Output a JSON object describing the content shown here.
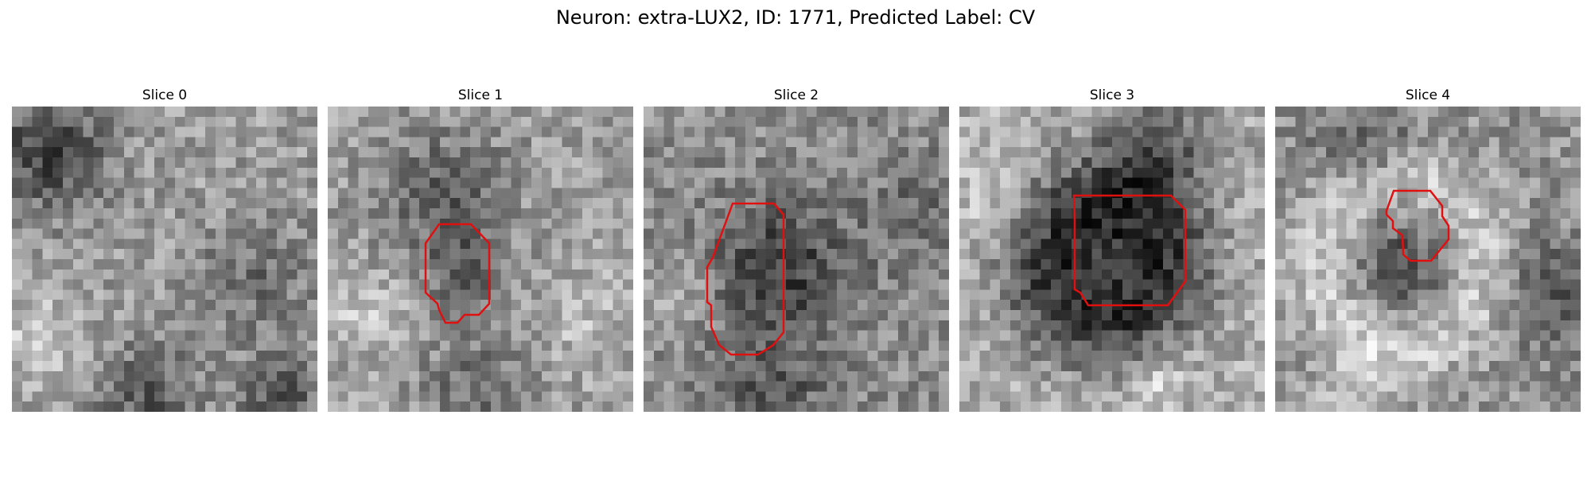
{
  "figure": {
    "title": "Neuron: extra-LUX2, ID: 1771, Predicted Label: CV"
  },
  "panels": [
    {
      "title": "Slice 0",
      "has_roi": false,
      "roi_color": "#e01010"
    },
    {
      "title": "Slice 1",
      "has_roi": true,
      "roi_color": "#e01010"
    },
    {
      "title": "Slice 2",
      "has_roi": true,
      "roi_color": "#e01010"
    },
    {
      "title": "Slice 3",
      "has_roi": true,
      "roi_color": "#e01010"
    },
    {
      "title": "Slice 4",
      "has_roi": true,
      "roi_color": "#e01010"
    }
  ],
  "image_style": {
    "colormap": "grayscale",
    "grid_cells": 30
  }
}
